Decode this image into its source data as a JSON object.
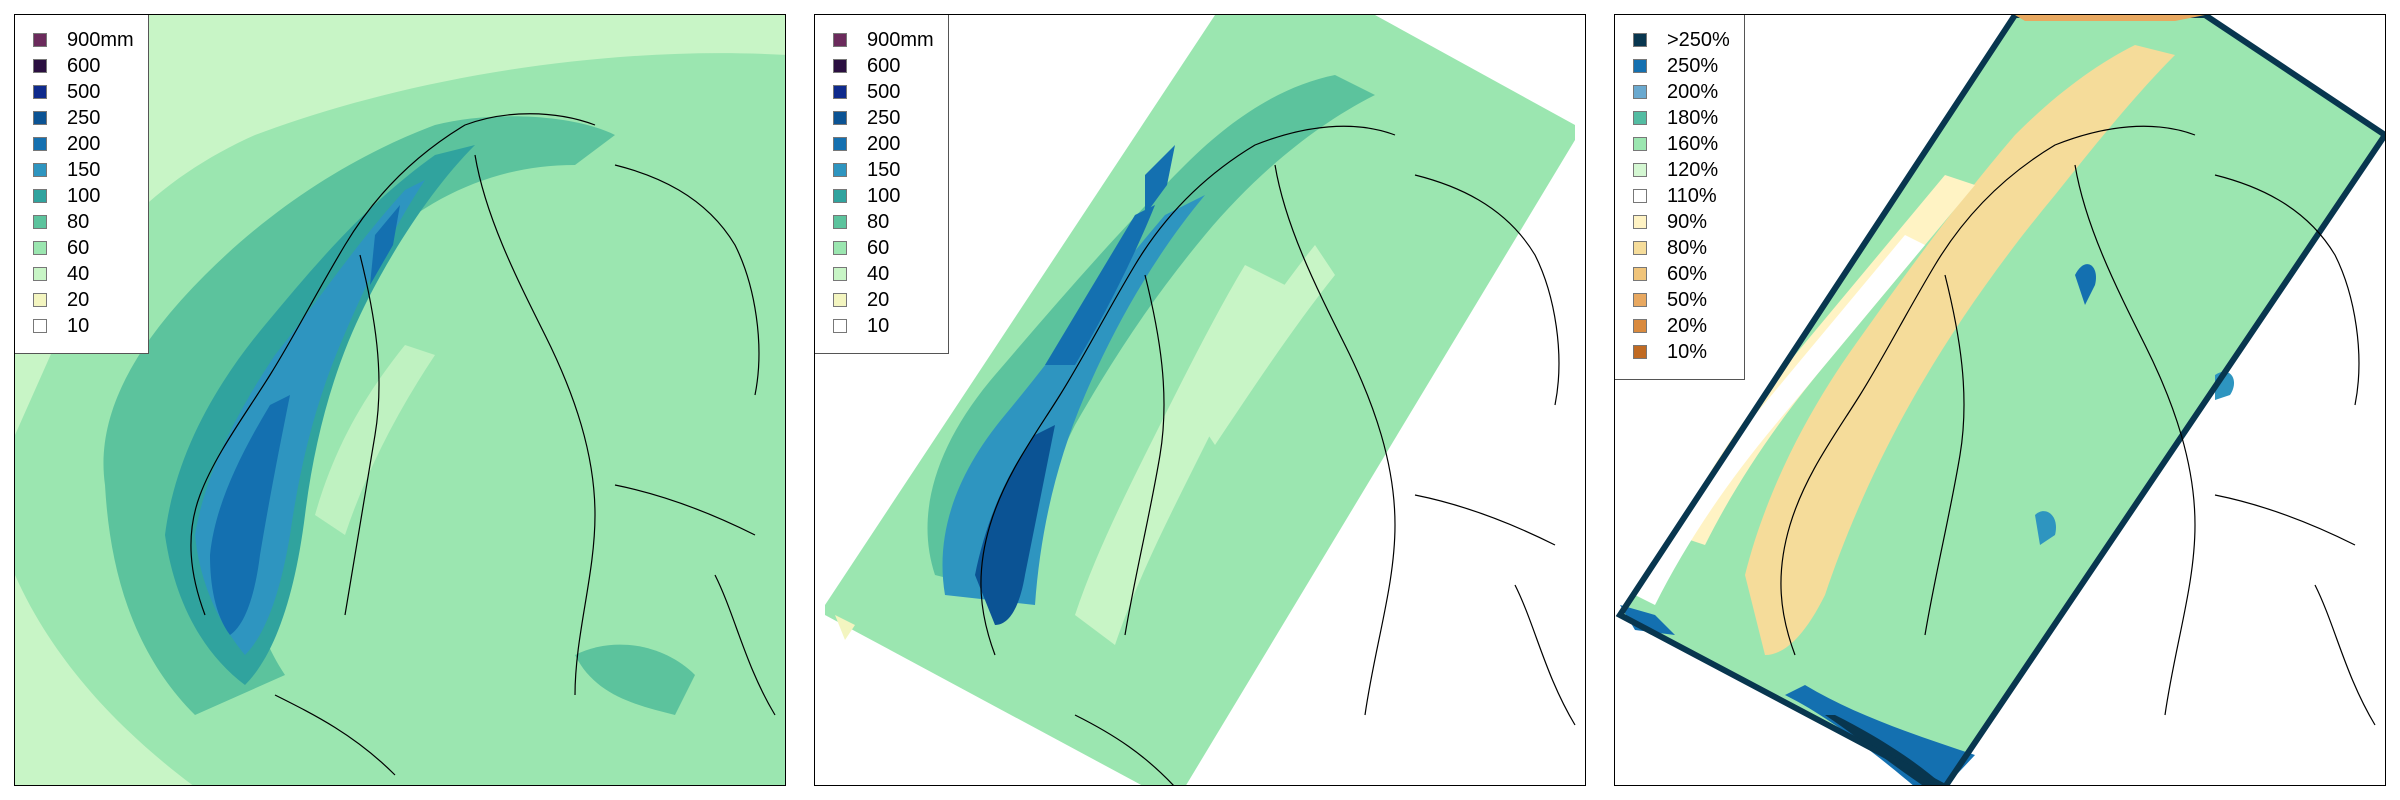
{
  "panels": [
    {
      "id": "panel-1",
      "legend": [
        {
          "label": "900mm",
          "color": "#6b2a5c"
        },
        {
          "label": "600",
          "color": "#2a0f40"
        },
        {
          "label": "500",
          "color": "#0f2a8c"
        },
        {
          "label": "250",
          "color": "#0b5394"
        },
        {
          "label": "200",
          "color": "#1470b0"
        },
        {
          "label": "150",
          "color": "#2e95c0"
        },
        {
          "label": "100",
          "color": "#30a39e"
        },
        {
          "label": "80",
          "color": "#5cc39d"
        },
        {
          "label": "60",
          "color": "#9be6b0"
        },
        {
          "label": "40",
          "color": "#c8f5c6"
        },
        {
          "label": "20",
          "color": "#f3f5c0"
        },
        {
          "label": "10",
          "color": "#ffffff"
        }
      ]
    },
    {
      "id": "panel-2",
      "legend": [
        {
          "label": "900mm",
          "color": "#6b2a5c"
        },
        {
          "label": "600",
          "color": "#2a0f40"
        },
        {
          "label": "500",
          "color": "#0f2a8c"
        },
        {
          "label": "250",
          "color": "#0b5394"
        },
        {
          "label": "200",
          "color": "#1470b0"
        },
        {
          "label": "150",
          "color": "#2e95c0"
        },
        {
          "label": "100",
          "color": "#30a39e"
        },
        {
          "label": "80",
          "color": "#5cc39d"
        },
        {
          "label": "60",
          "color": "#9be6b0"
        },
        {
          "label": "40",
          "color": "#c8f5c6"
        },
        {
          "label": "20",
          "color": "#f3f5c0"
        },
        {
          "label": "10",
          "color": "#ffffff"
        }
      ]
    },
    {
      "id": "panel-3",
      "legend": [
        {
          "label": ">250%",
          "color": "#08364f"
        },
        {
          "label": "250%",
          "color": "#1470b0"
        },
        {
          "label": "200%",
          "color": "#6aa9cf"
        },
        {
          "label": "180%",
          "color": "#53bca2"
        },
        {
          "label": "160%",
          "color": "#9be6b0"
        },
        {
          "label": "120%",
          "color": "#d4f7d2"
        },
        {
          "label": "110%",
          "color": "#ffffff"
        },
        {
          "label": "90%",
          "color": "#fff3c4"
        },
        {
          "label": "80%",
          "color": "#f5dc9a"
        },
        {
          "label": "60%",
          "color": "#f0c47a"
        },
        {
          "label": "50%",
          "color": "#e8a860"
        },
        {
          "label": "20%",
          "color": "#d98a3e"
        },
        {
          "label": "10%",
          "color": "#c06a22"
        }
      ]
    }
  ]
}
